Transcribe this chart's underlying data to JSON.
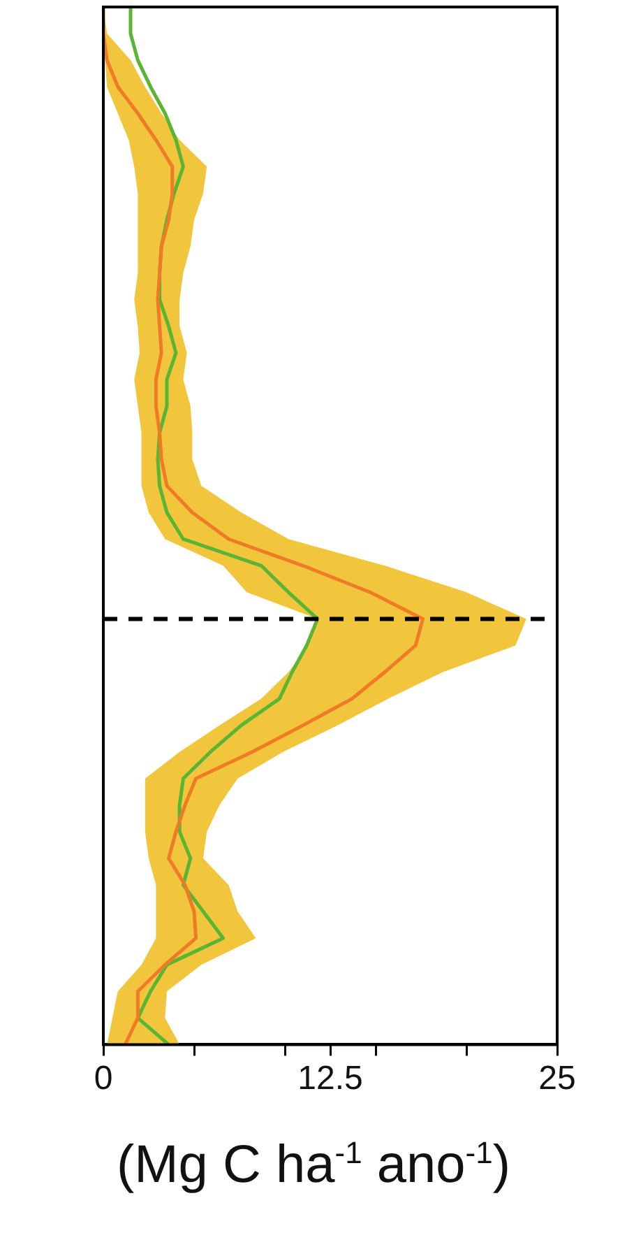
{
  "chart_data": {
    "type": "line",
    "orientation": "horizontal",
    "xlabel": "(Mg C ha$^{-1}$ ano$^{-1}$)",
    "categories": [
      null,
      null,
      null,
      null,
      null,
      null,
      null,
      null,
      null,
      null,
      null,
      null,
      null,
      null,
      null,
      null,
      null,
      null,
      null,
      null,
      null,
      null,
      null,
      null,
      null,
      null,
      null,
      null,
      null,
      null,
      null,
      null,
      null,
      null,
      null,
      null,
      null,
      null,
      null,
      null
    ],
    "series": [
      {
        "color": "#f07b27",
        "values": [
          0,
          0,
          0.2,
          0.8,
          1.9,
          2.9,
          3.8,
          3.8,
          3.6,
          3.2,
          3.1,
          3.0,
          3.1,
          3.2,
          2.9,
          2.9,
          3.1,
          3.2,
          3.5,
          4.9,
          6.9,
          11.0,
          14.7,
          17.6,
          17.2,
          15.5,
          13.7,
          11.0,
          8.2,
          5.1,
          4.5,
          4.0,
          3.6,
          4.5,
          5.0,
          5.1,
          3.4,
          1.9,
          1.9,
          1.2
        ],
        "lower": [
          0,
          0,
          0.1,
          0.2,
          0.8,
          1.4,
          1.7,
          1.9,
          1.9,
          1.9,
          1.9,
          1.7,
          1.9,
          2.0,
          1.7,
          1.9,
          2.1,
          2.1,
          2.1,
          2.5,
          3.4,
          6.6,
          7.9,
          11.8,
          11.3,
          10.2,
          8.7,
          6.4,
          4.2,
          2.3,
          2.3,
          2.3,
          2.5,
          2.9,
          2.9,
          2.9,
          2.1,
          0.8,
          0.5,
          0.2
        ],
        "upper": [
          0,
          0.2,
          1.5,
          2.3,
          3.2,
          4.2,
          5.7,
          5.5,
          5.0,
          4.8,
          4.4,
          4.2,
          4.2,
          4.6,
          4.4,
          4.8,
          4.9,
          4.9,
          5.4,
          7.6,
          10.2,
          15.5,
          20.0,
          23.3,
          22.7,
          18.7,
          15.7,
          12.9,
          9.9,
          7.4,
          6.4,
          5.7,
          5.5,
          6.9,
          7.4,
          8.4,
          5.4,
          3.5,
          3.4,
          4.2
        ]
      },
      {
        "color": "#5ab534",
        "values": [
          1.5,
          1.5,
          1.9,
          2.6,
          3.4,
          4.0,
          4.4,
          3.9,
          3.5,
          3.2,
          3.1,
          3.1,
          3.6,
          4.0,
          3.5,
          3.5,
          3.1,
          3.0,
          3.1,
          3.5,
          4.4,
          8.7,
          10.2,
          11.8,
          11.2,
          10.4,
          9.7,
          7.6,
          5.9,
          4.4,
          4.2,
          4.2,
          4.8,
          4.4,
          5.5,
          6.6,
          3.5,
          2.6,
          1.9,
          3.6
        ]
      }
    ],
    "xlim": [
      0,
      25
    ],
    "xticks": [
      0,
      {
        "value": 5,
        "label": null
      },
      {
        "value": 10,
        "label": null
      },
      12.5,
      {
        "value": 15,
        "label": null
      },
      {
        "value": 20,
        "label": null
      },
      25
    ],
    "tick_labels": "x",
    "grid": false,
    "legend": false,
    "marker": "none",
    "line_style": "solid"
  }
}
